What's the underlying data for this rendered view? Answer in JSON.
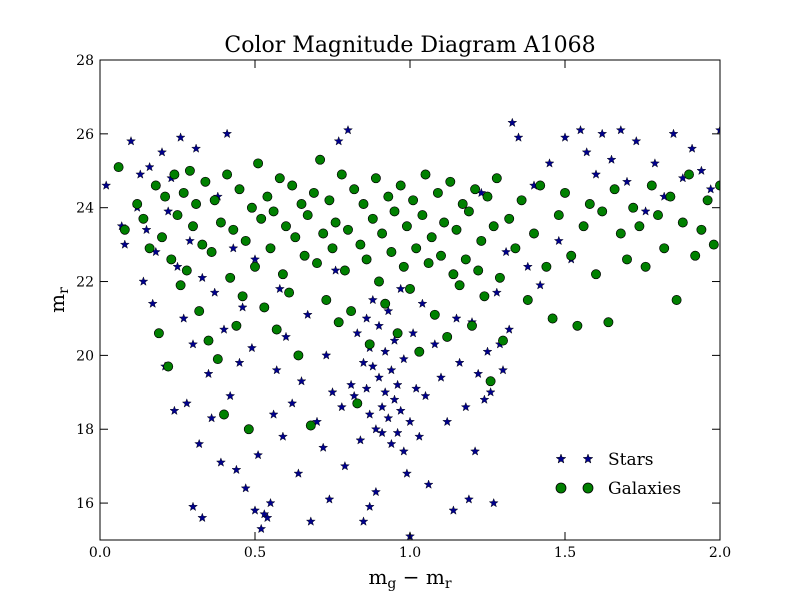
{
  "chart_data": {
    "type": "scatter",
    "title": "Color Magnitude Diagram A1068",
    "xlabel_base": "m",
    "xlabel_sub1": "g",
    "xlabel_minus": " − ",
    "xlabel_sub2": "r",
    "ylabel_base": "m",
    "ylabel_sub": "r",
    "xlim": [
      0.0,
      2.0
    ],
    "ylim": [
      15,
      28
    ],
    "xticks": [
      0.0,
      0.5,
      1.0,
      1.5,
      2.0
    ],
    "xtick_labels": [
      "0.0",
      "0.5",
      "1.0",
      "1.5",
      "2.0"
    ],
    "yticks": [
      16,
      18,
      20,
      22,
      24,
      26,
      28
    ],
    "ytick_labels": [
      "16",
      "18",
      "20",
      "22",
      "24",
      "26",
      "28"
    ],
    "grid": false,
    "legend_position": "lower-right",
    "series": [
      {
        "name": "Stars",
        "marker": "star",
        "color": "#00008b",
        "points": [
          [
            0.02,
            24.6
          ],
          [
            0.07,
            23.5
          ],
          [
            0.08,
            23.0
          ],
          [
            0.1,
            25.8
          ],
          [
            0.12,
            24.0
          ],
          [
            0.13,
            24.9
          ],
          [
            0.14,
            22.0
          ],
          [
            0.15,
            23.4
          ],
          [
            0.16,
            25.1
          ],
          [
            0.17,
            21.4
          ],
          [
            0.18,
            22.8
          ],
          [
            0.19,
            20.6
          ],
          [
            0.2,
            25.5
          ],
          [
            0.21,
            19.7
          ],
          [
            0.22,
            23.9
          ],
          [
            0.23,
            24.8
          ],
          [
            0.24,
            18.5
          ],
          [
            0.25,
            22.4
          ],
          [
            0.26,
            25.9
          ],
          [
            0.27,
            21.0
          ],
          [
            0.28,
            18.7
          ],
          [
            0.29,
            23.1
          ],
          [
            0.3,
            15.9
          ],
          [
            0.3,
            20.3
          ],
          [
            0.31,
            25.6
          ],
          [
            0.32,
            17.6
          ],
          [
            0.33,
            22.1
          ],
          [
            0.33,
            15.6
          ],
          [
            0.35,
            19.5
          ],
          [
            0.36,
            18.3
          ],
          [
            0.37,
            21.7
          ],
          [
            0.38,
            24.3
          ],
          [
            0.39,
            17.1
          ],
          [
            0.4,
            20.7
          ],
          [
            0.41,
            26.0
          ],
          [
            0.42,
            18.9
          ],
          [
            0.43,
            22.9
          ],
          [
            0.44,
            16.9
          ],
          [
            0.45,
            19.8
          ],
          [
            0.46,
            21.3
          ],
          [
            0.47,
            16.4
          ],
          [
            0.48,
            18.0
          ],
          [
            0.49,
            20.2
          ],
          [
            0.5,
            15.8
          ],
          [
            0.5,
            22.6
          ],
          [
            0.51,
            17.3
          ],
          [
            0.52,
            15.3
          ],
          [
            0.53,
            15.7
          ],
          [
            0.54,
            15.6
          ],
          [
            0.55,
            16.0
          ],
          [
            0.56,
            18.4
          ],
          [
            0.57,
            19.6
          ],
          [
            0.58,
            21.8
          ],
          [
            0.59,
            17.8
          ],
          [
            0.6,
            20.5
          ],
          [
            0.62,
            18.7
          ],
          [
            0.64,
            16.8
          ],
          [
            0.65,
            19.3
          ],
          [
            0.67,
            21.1
          ],
          [
            0.68,
            15.5
          ],
          [
            0.7,
            18.2
          ],
          [
            0.72,
            17.5
          ],
          [
            0.73,
            20.0
          ],
          [
            0.74,
            16.1
          ],
          [
            0.75,
            19.0
          ],
          [
            0.76,
            22.3
          ],
          [
            0.77,
            25.8
          ],
          [
            0.78,
            18.6
          ],
          [
            0.79,
            17.0
          ],
          [
            0.8,
            26.1
          ],
          [
            0.81,
            19.2
          ],
          [
            0.82,
            18.9
          ],
          [
            0.83,
            20.6
          ],
          [
            0.84,
            17.7
          ],
          [
            0.85,
            19.8
          ],
          [
            0.85,
            15.5
          ],
          [
            0.86,
            21.0
          ],
          [
            0.86,
            19.1
          ],
          [
            0.87,
            20.2
          ],
          [
            0.87,
            18.4
          ],
          [
            0.87,
            15.9
          ],
          [
            0.88,
            19.7
          ],
          [
            0.88,
            21.5
          ],
          [
            0.89,
            18.0
          ],
          [
            0.89,
            16.3
          ],
          [
            0.9,
            20.8
          ],
          [
            0.9,
            19.4
          ],
          [
            0.91,
            18.6
          ],
          [
            0.91,
            17.9
          ],
          [
            0.92,
            20.1
          ],
          [
            0.92,
            19.0
          ],
          [
            0.93,
            18.3
          ],
          [
            0.93,
            21.2
          ],
          [
            0.94,
            17.6
          ],
          [
            0.94,
            19.6
          ],
          [
            0.95,
            18.8
          ],
          [
            0.95,
            20.4
          ],
          [
            0.96,
            17.9
          ],
          [
            0.96,
            19.2
          ],
          [
            0.97,
            18.5
          ],
          [
            0.97,
            21.8
          ],
          [
            0.98,
            17.4
          ],
          [
            0.98,
            19.9
          ],
          [
            0.99,
            16.8
          ],
          [
            1.0,
            18.2
          ],
          [
            1.0,
            15.1
          ],
          [
            1.01,
            20.6
          ],
          [
            1.02,
            19.1
          ],
          [
            1.03,
            17.8
          ],
          [
            1.04,
            21.4
          ],
          [
            1.05,
            18.9
          ],
          [
            1.06,
            16.5
          ],
          [
            1.08,
            20.3
          ],
          [
            1.1,
            19.4
          ],
          [
            1.12,
            18.2
          ],
          [
            1.14,
            15.8
          ],
          [
            1.15,
            21.0
          ],
          [
            1.16,
            19.8
          ],
          [
            1.18,
            18.6
          ],
          [
            1.19,
            16.1
          ],
          [
            1.2,
            20.9
          ],
          [
            1.21,
            17.4
          ],
          [
            1.22,
            19.5
          ],
          [
            1.23,
            24.4
          ],
          [
            1.24,
            18.8
          ],
          [
            1.25,
            20.1
          ],
          [
            1.26,
            19.0
          ],
          [
            1.27,
            16.0
          ],
          [
            1.28,
            21.7
          ],
          [
            1.29,
            20.3
          ],
          [
            1.3,
            19.6
          ],
          [
            1.31,
            22.8
          ],
          [
            1.32,
            20.7
          ],
          [
            1.33,
            26.3
          ],
          [
            1.35,
            25.9
          ],
          [
            1.38,
            22.4
          ],
          [
            1.4,
            24.6
          ],
          [
            1.42,
            21.9
          ],
          [
            1.45,
            25.2
          ],
          [
            1.48,
            23.1
          ],
          [
            1.5,
            25.9
          ],
          [
            1.52,
            22.6
          ],
          [
            1.55,
            26.1
          ],
          [
            1.57,
            25.5
          ],
          [
            1.6,
            24.9
          ],
          [
            1.62,
            26.0
          ],
          [
            1.65,
            25.3
          ],
          [
            1.68,
            26.1
          ],
          [
            1.7,
            24.7
          ],
          [
            1.73,
            25.8
          ],
          [
            1.76,
            23.9
          ],
          [
            1.79,
            25.2
          ],
          [
            1.82,
            24.3
          ],
          [
            1.85,
            26.0
          ],
          [
            1.88,
            24.8
          ],
          [
            1.91,
            25.6
          ],
          [
            1.94,
            25.0
          ],
          [
            1.97,
            24.5
          ],
          [
            2.0,
            26.1
          ]
        ]
      },
      {
        "name": "Galaxies",
        "marker": "circle",
        "color": "#008000",
        "points": [
          [
            0.06,
            25.1
          ],
          [
            0.08,
            23.4
          ],
          [
            0.12,
            24.1
          ],
          [
            0.14,
            23.7
          ],
          [
            0.16,
            22.9
          ],
          [
            0.18,
            24.6
          ],
          [
            0.19,
            20.6
          ],
          [
            0.2,
            23.2
          ],
          [
            0.21,
            24.3
          ],
          [
            0.22,
            19.7
          ],
          [
            0.23,
            22.6
          ],
          [
            0.24,
            24.9
          ],
          [
            0.25,
            23.8
          ],
          [
            0.26,
            21.9
          ],
          [
            0.27,
            24.4
          ],
          [
            0.28,
            22.3
          ],
          [
            0.29,
            25.0
          ],
          [
            0.3,
            23.5
          ],
          [
            0.31,
            24.1
          ],
          [
            0.32,
            21.2
          ],
          [
            0.33,
            23.0
          ],
          [
            0.34,
            24.7
          ],
          [
            0.35,
            20.4
          ],
          [
            0.36,
            22.8
          ],
          [
            0.37,
            24.2
          ],
          [
            0.38,
            19.9
          ],
          [
            0.39,
            23.6
          ],
          [
            0.4,
            18.4
          ],
          [
            0.41,
            24.9
          ],
          [
            0.42,
            22.1
          ],
          [
            0.43,
            23.4
          ],
          [
            0.44,
            20.8
          ],
          [
            0.45,
            24.5
          ],
          [
            0.46,
            21.6
          ],
          [
            0.47,
            23.1
          ],
          [
            0.48,
            18.0
          ],
          [
            0.49,
            24.0
          ],
          [
            0.5,
            22.4
          ],
          [
            0.51,
            25.2
          ],
          [
            0.52,
            23.7
          ],
          [
            0.53,
            21.3
          ],
          [
            0.54,
            24.3
          ],
          [
            0.55,
            22.9
          ],
          [
            0.56,
            23.9
          ],
          [
            0.57,
            20.7
          ],
          [
            0.58,
            24.8
          ],
          [
            0.59,
            22.2
          ],
          [
            0.6,
            23.5
          ],
          [
            0.61,
            21.7
          ],
          [
            0.62,
            24.6
          ],
          [
            0.63,
            23.2
          ],
          [
            0.64,
            20.0
          ],
          [
            0.65,
            24.1
          ],
          [
            0.66,
            22.7
          ],
          [
            0.67,
            23.8
          ],
          [
            0.68,
            18.1
          ],
          [
            0.69,
            24.4
          ],
          [
            0.7,
            22.5
          ],
          [
            0.71,
            25.3
          ],
          [
            0.72,
            23.3
          ],
          [
            0.73,
            21.5
          ],
          [
            0.74,
            24.2
          ],
          [
            0.75,
            22.9
          ],
          [
            0.76,
            23.6
          ],
          [
            0.77,
            20.9
          ],
          [
            0.78,
            24.9
          ],
          [
            0.79,
            22.3
          ],
          [
            0.8,
            23.4
          ],
          [
            0.81,
            21.2
          ],
          [
            0.82,
            24.5
          ],
          [
            0.83,
            18.7
          ],
          [
            0.84,
            23.0
          ],
          [
            0.85,
            24.1
          ],
          [
            0.86,
            22.6
          ],
          [
            0.87,
            20.3
          ],
          [
            0.88,
            23.7
          ],
          [
            0.89,
            24.8
          ],
          [
            0.9,
            22.0
          ],
          [
            0.91,
            23.3
          ],
          [
            0.92,
            21.4
          ],
          [
            0.93,
            24.3
          ],
          [
            0.94,
            22.8
          ],
          [
            0.95,
            23.9
          ],
          [
            0.96,
            20.6
          ],
          [
            0.97,
            24.6
          ],
          [
            0.98,
            22.4
          ],
          [
            0.99,
            23.5
          ],
          [
            1.0,
            21.8
          ],
          [
            1.01,
            24.2
          ],
          [
            1.02,
            22.9
          ],
          [
            1.03,
            20.1
          ],
          [
            1.04,
            23.8
          ],
          [
            1.05,
            24.9
          ],
          [
            1.06,
            22.5
          ],
          [
            1.07,
            23.2
          ],
          [
            1.08,
            21.1
          ],
          [
            1.09,
            24.4
          ],
          [
            1.1,
            22.7
          ],
          [
            1.11,
            23.6
          ],
          [
            1.12,
            20.5
          ],
          [
            1.13,
            24.7
          ],
          [
            1.14,
            22.2
          ],
          [
            1.15,
            23.4
          ],
          [
            1.16,
            21.9
          ],
          [
            1.17,
            24.1
          ],
          [
            1.18,
            22.6
          ],
          [
            1.19,
            23.9
          ],
          [
            1.2,
            20.8
          ],
          [
            1.21,
            24.5
          ],
          [
            1.22,
            22.3
          ],
          [
            1.23,
            23.1
          ],
          [
            1.24,
            21.6
          ],
          [
            1.25,
            24.3
          ],
          [
            1.26,
            19.3
          ],
          [
            1.27,
            23.5
          ],
          [
            1.28,
            24.8
          ],
          [
            1.29,
            22.1
          ],
          [
            1.3,
            20.4
          ],
          [
            1.32,
            23.7
          ],
          [
            1.34,
            22.9
          ],
          [
            1.36,
            24.2
          ],
          [
            1.38,
            21.5
          ],
          [
            1.4,
            23.3
          ],
          [
            1.42,
            24.6
          ],
          [
            1.44,
            22.4
          ],
          [
            1.46,
            21.0
          ],
          [
            1.48,
            23.8
          ],
          [
            1.5,
            24.4
          ],
          [
            1.52,
            22.7
          ],
          [
            1.54,
            20.8
          ],
          [
            1.56,
            23.5
          ],
          [
            1.58,
            24.1
          ],
          [
            1.6,
            22.2
          ],
          [
            1.62,
            23.9
          ],
          [
            1.64,
            20.9
          ],
          [
            1.66,
            24.5
          ],
          [
            1.68,
            23.3
          ],
          [
            1.7,
            22.6
          ],
          [
            1.72,
            24.0
          ],
          [
            1.74,
            23.5
          ],
          [
            1.76,
            22.4
          ],
          [
            1.78,
            24.6
          ],
          [
            1.8,
            23.8
          ],
          [
            1.82,
            22.9
          ],
          [
            1.84,
            24.3
          ],
          [
            1.86,
            21.5
          ],
          [
            1.88,
            23.6
          ],
          [
            1.9,
            24.9
          ],
          [
            1.92,
            22.7
          ],
          [
            1.94,
            23.4
          ],
          [
            1.96,
            24.2
          ],
          [
            1.98,
            23.0
          ],
          [
            2.0,
            24.6
          ]
        ]
      }
    ]
  }
}
